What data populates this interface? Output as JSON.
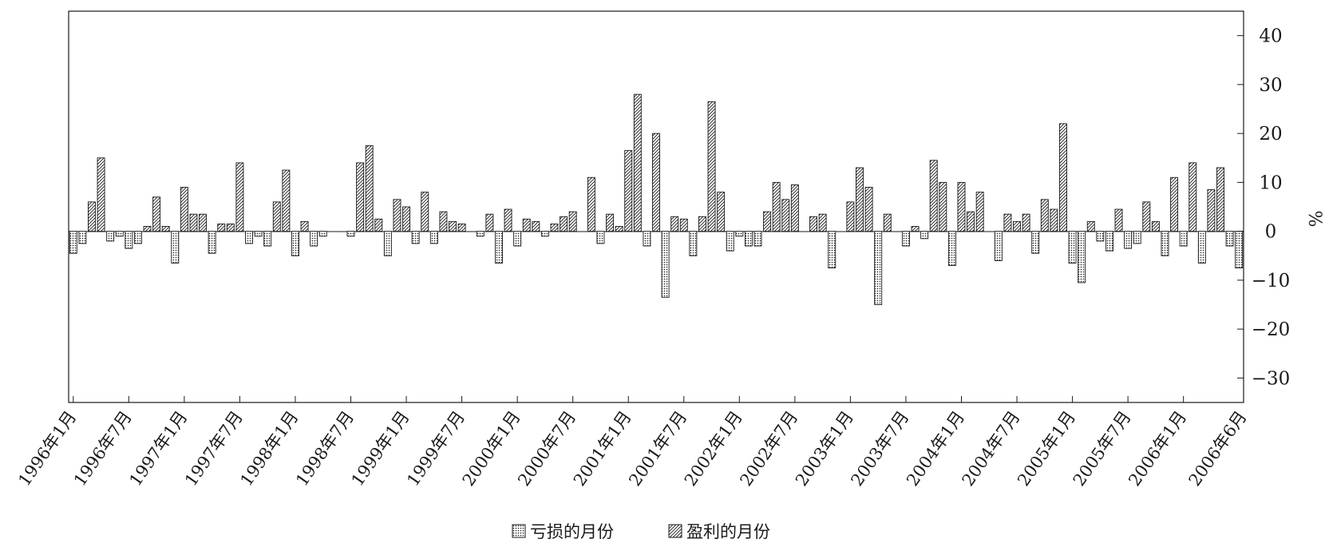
{
  "chart_data": {
    "type": "bar",
    "ylabel": "%",
    "ylim": [
      -35,
      45
    ],
    "yticks": [
      40,
      30,
      20,
      10,
      0,
      -10,
      -20,
      -30
    ],
    "ytick_labels": [
      "40",
      "30",
      "20",
      "10",
      "0",
      "−10",
      "−20",
      "−30"
    ],
    "x_start": "1996-01",
    "x_end": "2006-06",
    "xtick_labels": [
      "1996年1月",
      "1996年7月",
      "1997年1月",
      "1997年7月",
      "1998年1月",
      "1998年7月",
      "1999年1月",
      "1999年7月",
      "2000年1月",
      "2000年7月",
      "2001年1月",
      "2001年7月",
      "2002年1月",
      "2002年7月",
      "2003年1月",
      "2003年7月",
      "2004年1月",
      "2004年7月",
      "2005年1月",
      "2005年7月",
      "2006年1月",
      "2006年6月"
    ],
    "legend_position": "bottom-center",
    "legend": [
      {
        "label": "亏损的月份",
        "pattern": "dots"
      },
      {
        "label": "盈利的月份",
        "pattern": "hatch"
      }
    ],
    "values": [
      -4.5,
      -2.5,
      6,
      15,
      -2,
      -1,
      -3.5,
      -2.5,
      1,
      7,
      1,
      -6.5,
      9,
      3.5,
      3.5,
      -4.5,
      1.5,
      1.5,
      14,
      -2.5,
      -1,
      -3,
      6,
      12.5,
      -5,
      2,
      -3,
      -1,
      0,
      0,
      -1,
      14,
      17.5,
      2.5,
      -5,
      6.5,
      5,
      -2.5,
      8,
      -2.5,
      4,
      2,
      1.5,
      0,
      -1,
      3.5,
      -6.5,
      4.5,
      -3,
      2.5,
      2,
      -1,
      1.5,
      3,
      4,
      0,
      11,
      -2.5,
      3.5,
      1,
      16.5,
      28,
      -3,
      20,
      -13.5,
      3,
      2.5,
      -5,
      3,
      26.5,
      8,
      -4,
      -1,
      -3,
      -3,
      4,
      10,
      6.5,
      9.5,
      0,
      3,
      3.5,
      -7.5,
      0,
      6,
      13,
      9,
      -15,
      3.5,
      0,
      -3,
      1,
      -1.5,
      14.5,
      10,
      -7,
      10,
      4,
      8,
      0,
      -6,
      3.5,
      2,
      3.5,
      -4.5,
      6.5,
      4.5,
      22,
      -6.5,
      -10.5,
      2,
      -2,
      -4,
      4.5,
      -3.5,
      -2.5,
      6,
      2,
      -5,
      11,
      -3,
      14,
      -6.5,
      8.5,
      13,
      -3,
      -7.5
    ]
  }
}
